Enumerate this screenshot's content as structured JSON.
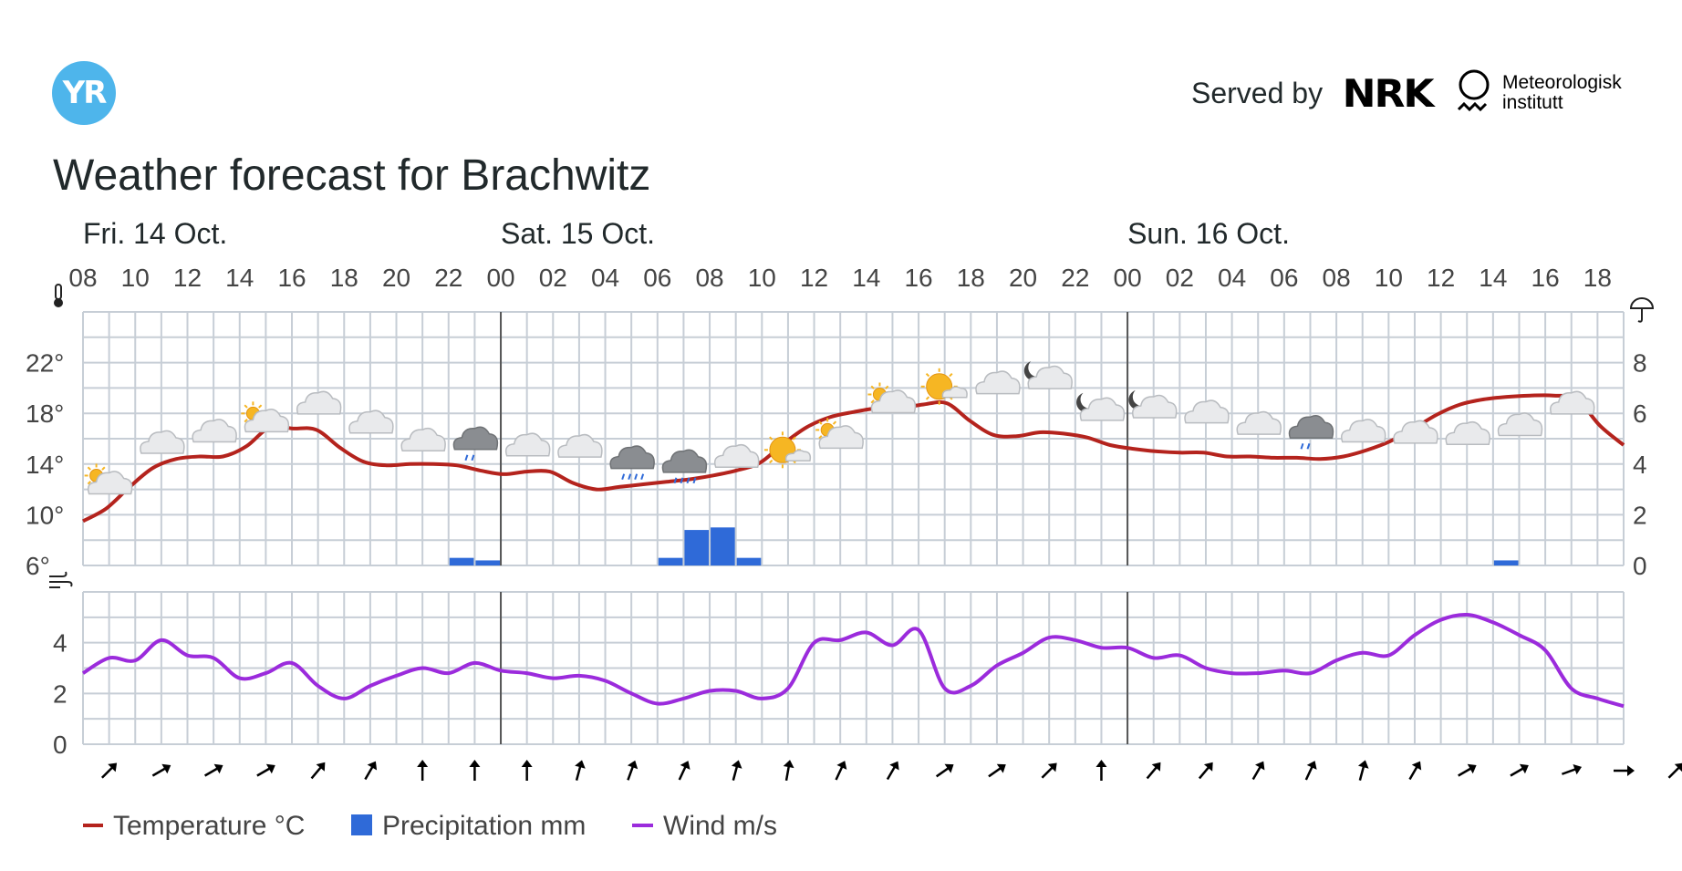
{
  "header": {
    "logo_text": "YR",
    "served_by": "Served by",
    "nrk_logo": "NRK",
    "met_line1": "Meteorologisk",
    "met_line2": "institutt"
  },
  "title": "Weather forecast for Brachwitz",
  "legend": {
    "temperature": "Temperature °C",
    "precipitation": "Precipitation mm",
    "wind": "Wind m/s"
  },
  "colors": {
    "temperature": "#b4231d",
    "precipitation": "#2f6ad8",
    "wind": "#9b2bdc",
    "grid": "#c7ced6",
    "midnight": "#555555"
  },
  "chart_data": [
    {
      "type": "line",
      "name": "temperature-precipitation",
      "days": [
        {
          "label": "Fri. 14 Oct.",
          "hour_index": 0
        },
        {
          "label": "Sat. 15 Oct.",
          "hour_index": 16
        },
        {
          "label": "Sun. 16 Oct.",
          "hour_index": 40
        }
      ],
      "hour_labels": [
        "08",
        "10",
        "12",
        "14",
        "16",
        "18",
        "20",
        "22",
        "00",
        "02",
        "04",
        "06",
        "08",
        "10",
        "12",
        "14",
        "16",
        "18",
        "20",
        "22",
        "00",
        "02",
        "04",
        "06",
        "08",
        "10",
        "12",
        "14",
        "16",
        "18"
      ],
      "midnight_indices": [
        16,
        40
      ],
      "y_left_ticks": [
        "6°",
        "10°",
        "14°",
        "18°",
        "22°"
      ],
      "y_left_range": [
        6,
        26
      ],
      "y_right_ticks": [
        "0",
        "2",
        "4",
        "6",
        "8"
      ],
      "y_right_range": [
        0,
        10
      ],
      "series": [
        {
          "name": "Temperature °C",
          "values": [
            9.5,
            10.5,
            12.2,
            13.7,
            14.4,
            14.6,
            14.6,
            15.4,
            16.9,
            16.8,
            16.7,
            15.3,
            14.2,
            13.9,
            14.0,
            14.0,
            13.9,
            13.5,
            13.2,
            13.4,
            13.4,
            12.5,
            12.0,
            12.2,
            12.4,
            12.6,
            12.8,
            13.1,
            13.5,
            14.1,
            15.6,
            16.9,
            17.7,
            18.1,
            18.4,
            18.4,
            18.7,
            18.8,
            17.4,
            16.3,
            16.2,
            16.5,
            16.4,
            16.1,
            15.5,
            15.2,
            15.0,
            14.9,
            14.9,
            14.6,
            14.6,
            14.5,
            14.5,
            14.4,
            14.6,
            15.1,
            15.8,
            16.8,
            17.9,
            18.7,
            19.1,
            19.3,
            19.4,
            19.4,
            19.1,
            17.0,
            15.5
          ]
        },
        {
          "name": "Precipitation mm",
          "values": [
            0,
            0,
            0,
            0,
            0,
            0,
            0,
            0,
            0,
            0,
            0,
            0,
            0,
            0,
            0.3,
            0.2,
            0,
            0,
            0,
            0,
            0,
            0,
            0.3,
            1.4,
            1.5,
            0.3,
            0,
            0,
            0,
            0,
            0,
            0,
            0,
            0,
            0,
            0,
            0,
            0,
            0,
            0,
            0,
            0,
            0,
            0,
            0,
            0,
            0,
            0,
            0,
            0,
            0,
            0,
            0,
            0,
            0.2,
            0,
            0,
            0,
            0,
            0,
            0,
            0,
            0,
            0,
            0,
            0,
            0,
            0,
            0
          ]
        }
      ],
      "symbols": [
        {
          "hour_index": 1,
          "kind": "partly-cloudy-day"
        },
        {
          "hour_index": 3,
          "kind": "cloudy"
        },
        {
          "hour_index": 5,
          "kind": "cloudy"
        },
        {
          "hour_index": 7,
          "kind": "partly-cloudy-day"
        },
        {
          "hour_index": 9,
          "kind": "cloudy"
        },
        {
          "hour_index": 11,
          "kind": "cloudy"
        },
        {
          "hour_index": 13,
          "kind": "cloudy"
        },
        {
          "hour_index": 15,
          "kind": "light-rain"
        },
        {
          "hour_index": 17,
          "kind": "cloudy"
        },
        {
          "hour_index": 19,
          "kind": "cloudy"
        },
        {
          "hour_index": 21,
          "kind": "rain"
        },
        {
          "hour_index": 23,
          "kind": "rain"
        },
        {
          "hour_index": 25,
          "kind": "cloudy"
        },
        {
          "hour_index": 27,
          "kind": "fair-day"
        },
        {
          "hour_index": 29,
          "kind": "partly-cloudy-day"
        },
        {
          "hour_index": 31,
          "kind": "partly-cloudy-day"
        },
        {
          "hour_index": 33,
          "kind": "fair-day"
        },
        {
          "hour_index": 35,
          "kind": "cloudy"
        },
        {
          "hour_index": 37,
          "kind": "partly-cloudy-night"
        },
        {
          "hour_index": 39,
          "kind": "partly-cloudy-night"
        },
        {
          "hour_index": 41,
          "kind": "partly-cloudy-night"
        },
        {
          "hour_index": 43,
          "kind": "cloudy"
        },
        {
          "hour_index": 45,
          "kind": "cloudy"
        },
        {
          "hour_index": 47,
          "kind": "light-rain"
        },
        {
          "hour_index": 49,
          "kind": "cloudy"
        },
        {
          "hour_index": 51,
          "kind": "cloudy"
        },
        {
          "hour_index": 53,
          "kind": "cloudy"
        },
        {
          "hour_index": 55,
          "kind": "cloudy"
        },
        {
          "hour_index": 57,
          "kind": "cloudy"
        }
      ]
    },
    {
      "type": "line",
      "name": "wind",
      "y_ticks": [
        "0",
        "2",
        "4"
      ],
      "y_range": [
        0,
        6
      ],
      "series": [
        {
          "name": "Wind m/s",
          "values": [
            2.8,
            3.4,
            3.3,
            4.1,
            3.5,
            3.4,
            2.6,
            2.8,
            3.2,
            2.3,
            1.8,
            2.3,
            2.7,
            3.0,
            2.8,
            3.2,
            2.9,
            2.8,
            2.6,
            2.7,
            2.5,
            2.0,
            1.6,
            1.8,
            2.1,
            2.1,
            1.8,
            2.2,
            4.0,
            4.1,
            4.4,
            3.9,
            4.5,
            2.2,
            2.3,
            3.1,
            3.6,
            4.2,
            4.1,
            3.8,
            3.8,
            3.4,
            3.5,
            3.0,
            2.8,
            2.8,
            2.9,
            2.8,
            3.3,
            3.6,
            3.5,
            4.3,
            4.9,
            5.1,
            4.8,
            4.3,
            3.7,
            2.2,
            1.8,
            1.5
          ]
        }
      ],
      "wind_direction_deg": [
        45,
        60,
        60,
        60,
        40,
        30,
        0,
        0,
        0,
        15,
        20,
        25,
        15,
        10,
        25,
        30,
        55,
        55,
        45,
        0,
        40,
        40,
        30,
        25,
        15,
        30,
        60,
        60,
        70,
        90,
        45
      ]
    }
  ]
}
